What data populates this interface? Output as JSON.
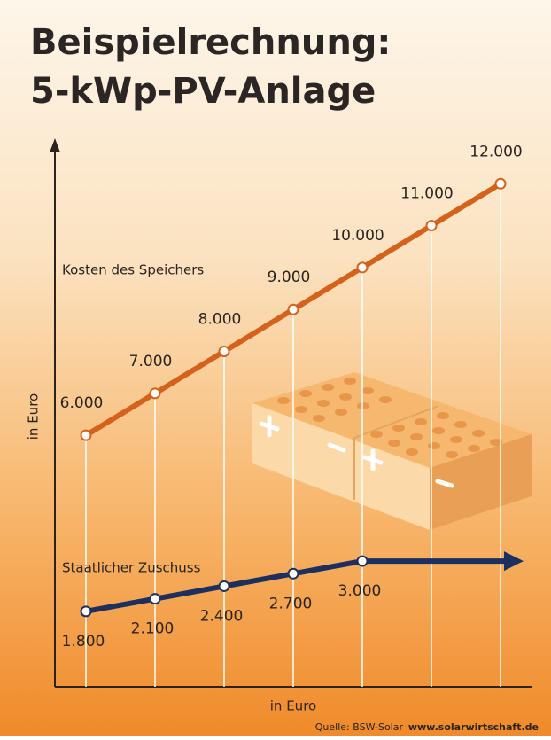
{
  "chart_data": {
    "type": "line",
    "title": "Beispielrechnung:",
    "subtitle": "5-kWp-PV-Anlage",
    "y_label": "in Euro",
    "x_label": "in Euro",
    "categories": [
      null,
      null,
      null,
      null,
      null,
      null,
      null
    ],
    "ylim": [
      0,
      13000
    ],
    "series": [
      {
        "name": "Kosten des Speichers",
        "color": "#d5621c",
        "values": [
          6000,
          7000,
          8000,
          9000,
          10000,
          11000,
          12000
        ],
        "value_labels": [
          "6.000",
          "7.000",
          "8.000",
          "9.000",
          "10.000",
          "11.000",
          "12.000"
        ]
      },
      {
        "name": "Staatlicher Zuschuss",
        "color": "#1c2f5e",
        "values": [
          1800,
          2100,
          2400,
          2700,
          3000,
          null,
          null
        ],
        "value_labels": [
          "1.800",
          "2.100",
          "2.400",
          "2.700",
          "3.000",
          null,
          null
        ]
      }
    ],
    "source": "Quelle: BSW-Solar",
    "source_url": "www.solarwirtschaft.de"
  }
}
